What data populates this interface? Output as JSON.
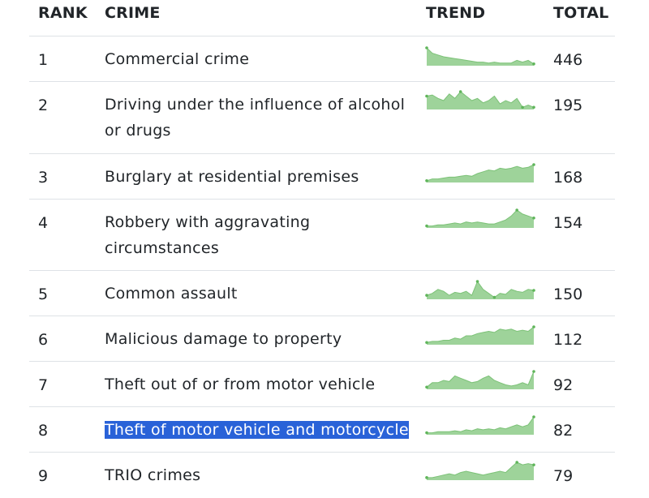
{
  "header": {
    "rank": "RANK",
    "crime": "CRIME",
    "trend": "TREND",
    "total": "TOTAL"
  },
  "colors": {
    "spark_fill": "#9ed39a",
    "spark_line": "#7cc277",
    "spark_dot": "#5fb55a",
    "highlight": "#2962d8",
    "border": "#dee2e6"
  },
  "rows": [
    {
      "rank": "1",
      "crime": "Commercial crime",
      "total": "446",
      "trend": [
        10,
        7,
        6,
        5,
        4.5,
        4,
        3.5,
        3,
        2.5,
        2,
        2,
        1.5,
        2,
        1.5,
        1.5,
        1.5,
        3,
        2,
        3,
        1
      ]
    },
    {
      "rank": "2",
      "crime": "Driving under the influence of alcohol or drugs",
      "total": "195",
      "trend": [
        6,
        6.5,
        5,
        4,
        7,
        5,
        8,
        6,
        4,
        5,
        3,
        4,
        6,
        2.5,
        4,
        3,
        5,
        1,
        2,
        1
      ]
    },
    {
      "rank": "3",
      "crime": "Burglary at residential premises",
      "total": "168",
      "trend": [
        1,
        2,
        2,
        2.5,
        3,
        3,
        3.5,
        4,
        3.5,
        5,
        6,
        7,
        6.5,
        8,
        7.5,
        8,
        9,
        8,
        8.5,
        10
      ]
    },
    {
      "rank": "4",
      "crime": "Robbery with aggravating circumstances",
      "total": "154",
      "trend": [
        1,
        1,
        1.5,
        1.5,
        2,
        2.5,
        2,
        3,
        2.5,
        3,
        2.5,
        2,
        2,
        3,
        4,
        6,
        9,
        7,
        6,
        5
      ]
    },
    {
      "rank": "5",
      "crime": "Common assault",
      "total": "150",
      "trend": [
        2,
        3,
        5,
        4,
        2,
        3.5,
        3,
        4,
        2,
        9,
        5,
        3,
        1,
        3,
        2.5,
        5,
        4,
        3.5,
        5,
        4.5
      ]
    },
    {
      "rank": "6",
      "crime": "Malicious damage to property",
      "total": "112",
      "trend": [
        1,
        1.5,
        1.5,
        2,
        2,
        3,
        2.5,
        4,
        4,
        5,
        5.5,
        6,
        5.5,
        7,
        6.5,
        7,
        6,
        6.5,
        6,
        8
      ]
    },
    {
      "rank": "7",
      "crime": "Theft out of or from motor vehicle",
      "total": "92",
      "trend": [
        1,
        3,
        3,
        4,
        3.5,
        6,
        5,
        4,
        3,
        3.5,
        5,
        6,
        4,
        3,
        2,
        1.5,
        2,
        3,
        2,
        8
      ]
    },
    {
      "rank": "8",
      "crime": "Theft of motor vehicle and motorcycle",
      "total": "82",
      "trend": [
        1,
        1,
        1.5,
        1.5,
        1.5,
        2,
        1.5,
        2.5,
        2,
        3,
        2.5,
        3,
        2.5,
        3.5,
        3,
        4,
        5,
        4,
        5,
        9
      ]
    },
    {
      "rank": "9",
      "crime": "TRIO crimes",
      "total": "79",
      "trend": [
        1,
        1,
        1.5,
        2,
        2.5,
        2,
        3,
        3.5,
        3,
        2.5,
        2,
        2.5,
        3,
        3.5,
        3,
        5,
        7,
        6,
        6.5,
        6
      ]
    }
  ]
}
